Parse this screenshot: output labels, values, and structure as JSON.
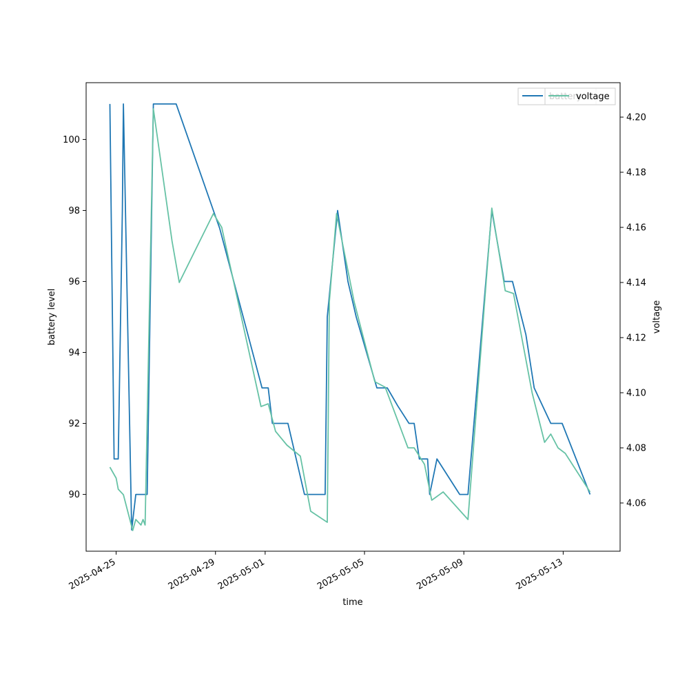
{
  "chart_data": {
    "type": "line",
    "xlabel": "time",
    "ylabel_left": "battery level",
    "ylabel_right": "voltage",
    "x_range": [
      "2025-04-23T19:00",
      "2025-05-15T07:00"
    ],
    "left_ylim": [
      88.4,
      101.6
    ],
    "right_ylim": [
      4.0425,
      4.2125
    ],
    "x_ticks": [
      {
        "label": "2025-04-25",
        "date": "2025-04-25"
      },
      {
        "label": "2025-04-29",
        "date": "2025-04-29"
      },
      {
        "label": "2025-05-01",
        "date": "2025-05-01"
      },
      {
        "label": "2025-05-05",
        "date": "2025-05-05"
      },
      {
        "label": "2025-05-09",
        "date": "2025-05-09"
      },
      {
        "label": "2025-05-13",
        "date": "2025-05-13"
      }
    ],
    "left_ticks": [
      {
        "label": "90",
        "value": 90
      },
      {
        "label": "92",
        "value": 92
      },
      {
        "label": "94",
        "value": 94
      },
      {
        "label": "96",
        "value": 96
      },
      {
        "label": "98",
        "value": 98
      },
      {
        "label": "100",
        "value": 100
      }
    ],
    "right_ticks": [
      {
        "label": "4.06",
        "value": 4.06
      },
      {
        "label": "4.08",
        "value": 4.08
      },
      {
        "label": "4.10",
        "value": 4.1
      },
      {
        "label": "4.12",
        "value": 4.12
      },
      {
        "label": "4.14",
        "value": 4.14
      },
      {
        "label": "4.16",
        "value": 4.16
      },
      {
        "label": "4.18",
        "value": 4.18
      },
      {
        "label": "4.20",
        "value": 4.2
      }
    ],
    "series": [
      {
        "name": "battery",
        "axis": "left",
        "color": "#1f77b4",
        "points": [
          [
            "2025-04-24T18:00",
            101
          ],
          [
            "2025-04-24T22:00",
            91
          ],
          [
            "2025-04-25T02:00",
            91
          ],
          [
            "2025-04-25T06:00",
            98
          ],
          [
            "2025-04-25T07:00",
            101
          ],
          [
            "2025-04-25T15:00",
            89
          ],
          [
            "2025-04-25T19:00",
            90
          ],
          [
            "2025-04-26T06:00",
            90
          ],
          [
            "2025-04-26T12:00",
            101
          ],
          [
            "2025-04-27T03:00",
            101
          ],
          [
            "2025-04-27T10:00",
            101
          ],
          [
            "2025-04-28T22:00",
            98
          ],
          [
            "2025-04-29T04:00",
            97.5
          ],
          [
            "2025-04-30T21:00",
            93
          ],
          [
            "2025-05-01T03:00",
            93
          ],
          [
            "2025-05-01T07:00",
            92
          ],
          [
            "2025-05-01T22:00",
            92
          ],
          [
            "2025-05-02T14:00",
            90
          ],
          [
            "2025-05-03T06:00",
            90
          ],
          [
            "2025-05-03T10:00",
            90
          ],
          [
            "2025-05-03T12:00",
            95
          ],
          [
            "2025-05-03T22:00",
            98
          ],
          [
            "2025-05-04T08:00",
            96
          ],
          [
            "2025-05-04T16:00",
            95
          ],
          [
            "2025-05-05T12:00",
            93
          ],
          [
            "2025-05-05T22:00",
            93
          ],
          [
            "2025-05-06T08:00",
            92.5
          ],
          [
            "2025-05-06T19:00",
            92
          ],
          [
            "2025-05-07T00:00",
            92
          ],
          [
            "2025-05-07T05:00",
            91
          ],
          [
            "2025-05-07T13:00",
            91
          ],
          [
            "2025-05-07T15:00",
            90
          ],
          [
            "2025-05-07T22:00",
            91
          ],
          [
            "2025-05-08T20:00",
            90
          ],
          [
            "2025-05-09T04:00",
            90
          ],
          [
            "2025-05-10T03:00",
            98
          ],
          [
            "2025-05-10T15:00",
            96
          ],
          [
            "2025-05-10T23:00",
            96
          ],
          [
            "2025-05-11T12:00",
            94.5
          ],
          [
            "2025-05-11T20:00",
            93
          ],
          [
            "2025-05-12T12:00",
            92
          ],
          [
            "2025-05-12T23:00",
            92
          ],
          [
            "2025-05-14T02:00",
            90
          ]
        ]
      },
      {
        "name": "voltage",
        "axis": "right",
        "color": "#66c2a5",
        "points": [
          [
            "2025-04-24T18:00",
            4.073
          ],
          [
            "2025-04-25T00:00",
            4.069
          ],
          [
            "2025-04-25T02:00",
            4.065
          ],
          [
            "2025-04-25T07:00",
            4.063
          ],
          [
            "2025-04-25T16:00",
            4.05
          ],
          [
            "2025-04-25T19:00",
            4.054
          ],
          [
            "2025-04-26T00:00",
            4.052
          ],
          [
            "2025-04-26T02:00",
            4.054
          ],
          [
            "2025-04-26T04:00",
            4.052
          ],
          [
            "2025-04-26T12:00",
            4.203
          ],
          [
            "2025-04-27T06:00",
            4.155
          ],
          [
            "2025-04-27T13:00",
            4.14
          ],
          [
            "2025-04-28T22:00",
            4.165
          ],
          [
            "2025-04-29T06:00",
            4.16
          ],
          [
            "2025-04-30T20:00",
            4.095
          ],
          [
            "2025-05-01T03:00",
            4.096
          ],
          [
            "2025-05-01T10:00",
            4.086
          ],
          [
            "2025-05-01T21:00",
            4.081
          ],
          [
            "2025-05-02T10:00",
            4.077
          ],
          [
            "2025-05-02T20:00",
            4.057
          ],
          [
            "2025-05-03T12:00",
            4.053
          ],
          [
            "2025-05-03T14:00",
            4.133
          ],
          [
            "2025-05-03T21:00",
            4.165
          ],
          [
            "2025-05-04T14:00",
            4.133
          ],
          [
            "2025-05-05T10:00",
            4.104
          ],
          [
            "2025-05-05T20:00",
            4.102
          ],
          [
            "2025-05-06T18:00",
            4.08
          ],
          [
            "2025-05-07T00:00",
            4.08
          ],
          [
            "2025-05-07T10:00",
            4.074
          ],
          [
            "2025-05-07T17:00",
            4.061
          ],
          [
            "2025-05-08T04:00",
            4.064
          ],
          [
            "2025-05-09T04:00",
            4.054
          ],
          [
            "2025-05-10T03:00",
            4.167
          ],
          [
            "2025-05-10T16:00",
            4.137
          ],
          [
            "2025-05-11T00:00",
            4.136
          ],
          [
            "2025-05-11T18:00",
            4.1
          ],
          [
            "2025-05-12T06:00",
            4.082
          ],
          [
            "2025-05-12T12:00",
            4.085
          ],
          [
            "2025-05-12T19:00",
            4.08
          ],
          [
            "2025-05-13T02:00",
            4.078
          ],
          [
            "2025-05-14T02:00",
            4.064
          ]
        ]
      }
    ]
  },
  "legend": {
    "placement": "upper-right",
    "entries": [
      {
        "label": "battery",
        "color": "#1f77b4"
      },
      {
        "label": "voltage",
        "color": "#66c2a5"
      }
    ]
  }
}
